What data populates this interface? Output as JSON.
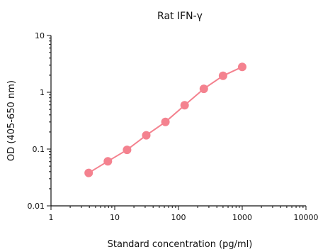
{
  "chart_data": {
    "type": "line",
    "title": "Rat IFN-γ",
    "xlabel": "Standard concentration (pg/ml)",
    "ylabel": "OD (405-650 nm)",
    "xscale": "log",
    "yscale": "log",
    "xlim": [
      1,
      10000
    ],
    "ylim": [
      0.01,
      10
    ],
    "x_ticks": [
      "1",
      "10",
      "100",
      "1000",
      "10000"
    ],
    "y_ticks": [
      "0.01",
      "0.1",
      "1",
      "10"
    ],
    "grid": false,
    "legend": "none",
    "series": [
      {
        "color": "#f4828f",
        "x": [
          3.9,
          7.8,
          15.6,
          31.25,
          62.5,
          125,
          250,
          500,
          1000
        ],
        "y": [
          0.038,
          0.061,
          0.097,
          0.175,
          0.3,
          0.59,
          1.15,
          1.95,
          2.8
        ]
      }
    ]
  }
}
